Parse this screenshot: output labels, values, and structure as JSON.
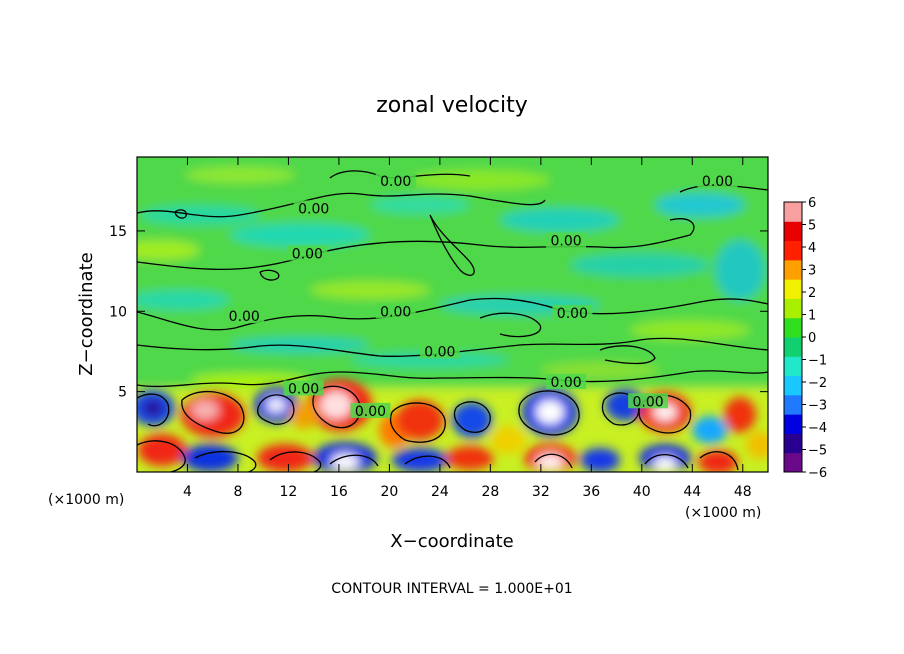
{
  "chart_data": {
    "type": "heatmap",
    "title": "zonal velocity",
    "xlabel": "X−coordinate",
    "ylabel": "Z−coordinate",
    "x_unit": "(×1000 m)",
    "y_unit": "(×1000 m)",
    "xlim": [
      0,
      50
    ],
    "ylim": [
      0,
      19.6
    ],
    "x_ticks": [
      4,
      8,
      12,
      16,
      20,
      24,
      28,
      32,
      36,
      40,
      44,
      48
    ],
    "x_tick_labels": [
      "4",
      "8",
      "12",
      "16",
      "20",
      "24",
      "28",
      "32",
      "36",
      "40",
      "44",
      "48"
    ],
    "y_ticks": [
      5,
      10,
      15
    ],
    "y_tick_labels": [
      "5",
      "10",
      "15"
    ],
    "colorbar": {
      "min": -6,
      "max": 6,
      "ticks": [
        6,
        5,
        4,
        3,
        2,
        1,
        0,
        -1,
        -2,
        -3,
        -4,
        -5,
        -6
      ],
      "tick_labels": [
        "6",
        "5",
        "4",
        "3",
        "2",
        "1",
        "0",
        "−1",
        "−2",
        "−3",
        "−4",
        "−5",
        "−6"
      ],
      "colors": [
        "#6a0a8a",
        "#2a0090",
        "#0000e0",
        "#1f7aff",
        "#18c8ff",
        "#20e8c8",
        "#10d070",
        "#30e020",
        "#a8f000",
        "#f0f000",
        "#ffa000",
        "#ff2000",
        "#e80000",
        "#f8a0a0"
      ]
    },
    "contour_level_label": "0.00",
    "contour_label_positions": [
      {
        "x": 20.5,
        "z": 18.1
      },
      {
        "x": 46.0,
        "z": 18.1
      },
      {
        "x": 14.0,
        "z": 16.4
      },
      {
        "x": 34.0,
        "z": 14.4
      },
      {
        "x": 13.5,
        "z": 13.6
      },
      {
        "x": 8.5,
        "z": 9.7
      },
      {
        "x": 20.5,
        "z": 10.0
      },
      {
        "x": 34.5,
        "z": 9.9
      },
      {
        "x": 24.0,
        "z": 7.5
      },
      {
        "x": 34.0,
        "z": 5.6
      },
      {
        "x": 13.2,
        "z": 5.2
      },
      {
        "x": 18.5,
        "z": 3.8
      },
      {
        "x": 40.5,
        "z": 4.4
      }
    ],
    "contour_interval_text": "CONTOUR INTERVAL = 1.000E+01",
    "grid": false
  }
}
